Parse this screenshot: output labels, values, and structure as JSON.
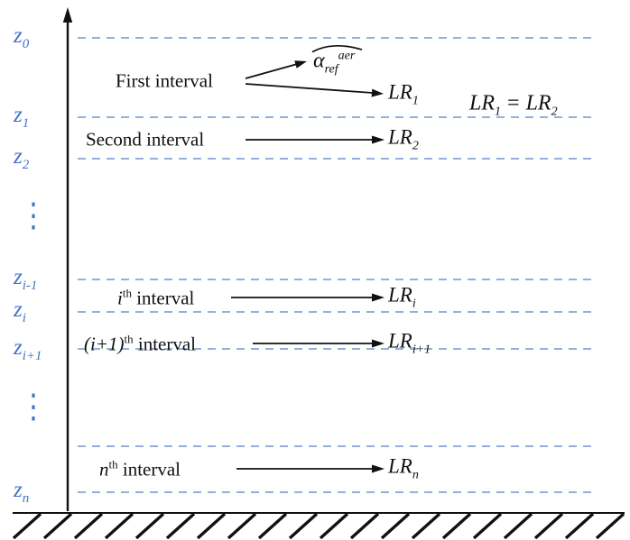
{
  "colors": {
    "axis_label_blue": "#4472c4",
    "dashed_line_blue": "#94afdd",
    "ink": "#111111"
  },
  "z_labels": [
    {
      "base": "z",
      "sub": "0"
    },
    {
      "base": "z",
      "sub": "1"
    },
    {
      "base": "z",
      "sub": "2"
    },
    {
      "base": "z",
      "sub": "i-1"
    },
    {
      "base": "z",
      "sub": "i"
    },
    {
      "base": "z",
      "sub": "i+1"
    },
    {
      "base": "z",
      "sub": "n"
    }
  ],
  "ellipsis": "⋮",
  "intervals": {
    "first": {
      "label": "First interval"
    },
    "second": {
      "label": "Second interval"
    },
    "ith": {
      "variable": "i",
      "ordinal": "th",
      "rest": " interval"
    },
    "iplus1th": {
      "variable": "(i+1)",
      "ordinal": "th",
      "rest": " interval"
    },
    "nth": {
      "variable": "n",
      "ordinal": "th",
      "rest": " interval"
    }
  },
  "outputs": {
    "alpha_ref": {
      "base": "α",
      "sub": "ref",
      "sup": "aer"
    },
    "lr1": {
      "base": "LR",
      "sub": "1"
    },
    "lr2": {
      "base": "LR",
      "sub": "2"
    },
    "lri": {
      "base": "LR",
      "sub": "i"
    },
    "lriplus1": {
      "base": "LR",
      "sub": "i+1"
    },
    "lrn": {
      "base": "LR",
      "sub": "n"
    }
  },
  "equation": {
    "lhs_base": "LR",
    "lhs_sub": "1",
    "equals": "=",
    "rhs_base": "LR",
    "rhs_sub": "2"
  }
}
